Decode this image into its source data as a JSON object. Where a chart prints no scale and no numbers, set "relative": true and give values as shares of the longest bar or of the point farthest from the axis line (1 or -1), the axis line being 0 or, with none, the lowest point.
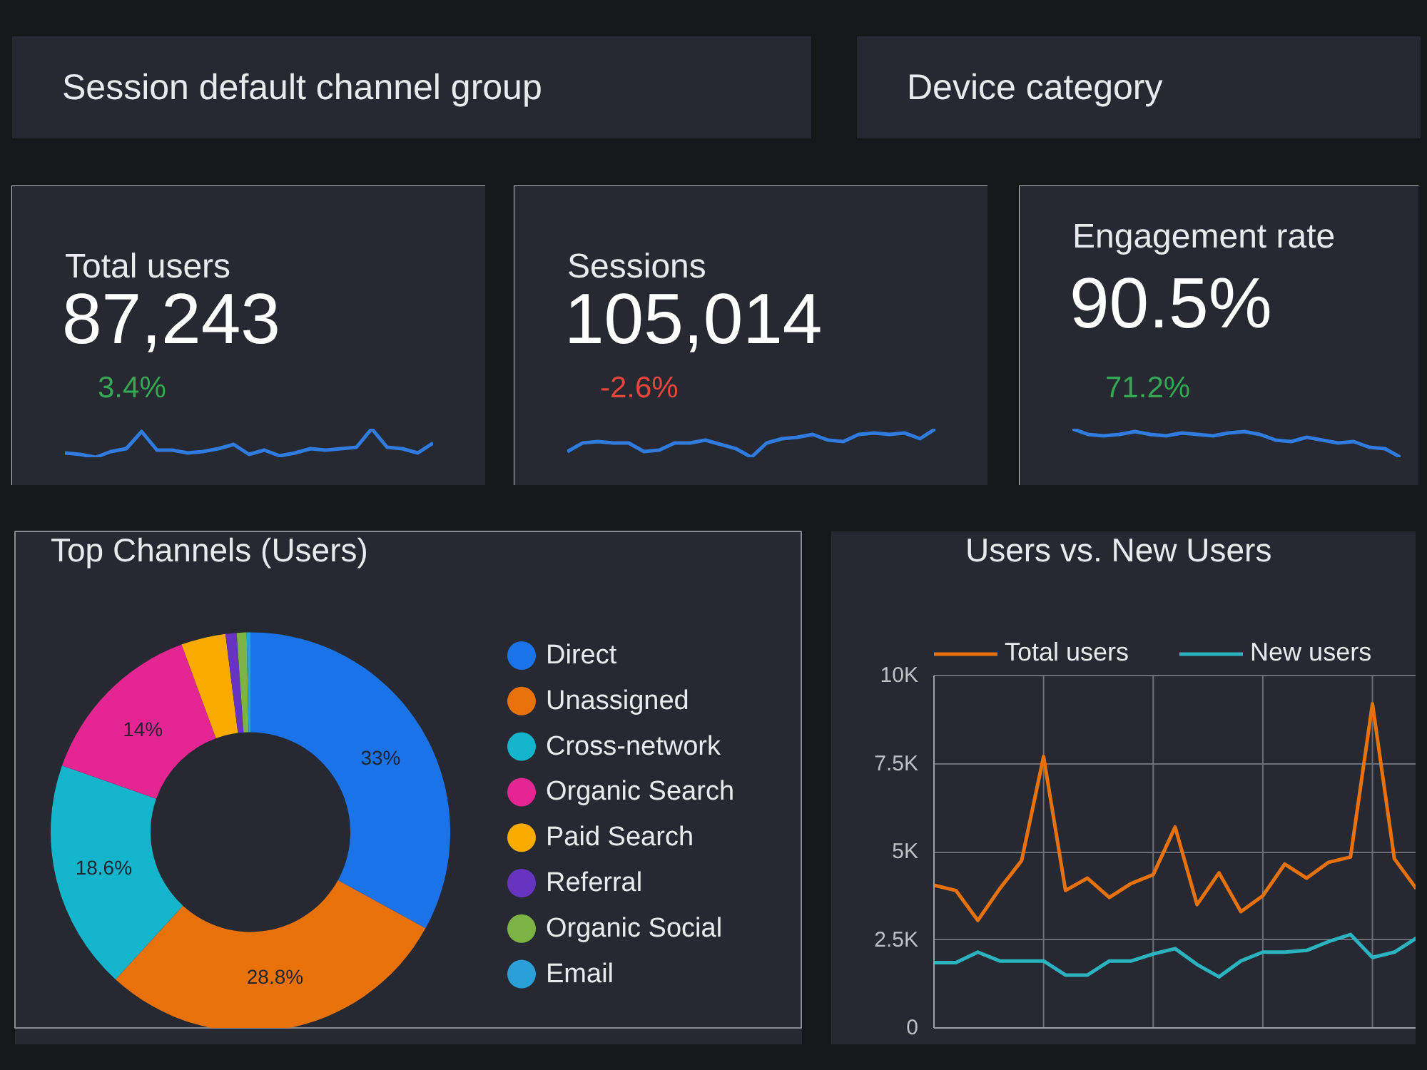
{
  "chart_data": [
    {
      "type": "other",
      "annotations": [
        "Session default channel group",
        "Device category"
      ]
    },
    {
      "type": "line",
      "relative": true,
      "title": "Total users",
      "annotations": [
        "87,243",
        "3.4%"
      ],
      "categories": [
        null,
        null,
        null,
        null,
        null,
        null,
        null,
        null,
        null,
        null,
        null,
        null,
        null,
        null,
        null,
        null,
        null,
        null,
        null,
        null,
        null,
        null,
        null,
        null,
        null
      ],
      "series": [
        {
          "color": "#2f7be0",
          "values": [
            0.15,
            0.1,
            0,
            0.2,
            0.3,
            0.9,
            0.25,
            0.25,
            0.15,
            0.2,
            0.3,
            0.45,
            0.1,
            0.25,
            0.05,
            0.15,
            0.3,
            0.25,
            0.3,
            0.35,
            1,
            0.35,
            0.3,
            0.15,
            0.5
          ]
        }
      ]
    },
    {
      "type": "line",
      "relative": true,
      "title": "Sessions",
      "annotations": [
        "105,014",
        "-2.6%"
      ],
      "categories": [
        null,
        null,
        null,
        null,
        null,
        null,
        null,
        null,
        null,
        null,
        null,
        null,
        null,
        null,
        null,
        null,
        null,
        null,
        null,
        null,
        null,
        null,
        null,
        null,
        null
      ],
      "series": [
        {
          "color": "#2f7be0",
          "values": [
            0.2,
            0.5,
            0.55,
            0.5,
            0.5,
            0.2,
            0.25,
            0.5,
            0.5,
            0.6,
            0.45,
            0.3,
            0,
            0.5,
            0.65,
            0.7,
            0.8,
            0.6,
            0.55,
            0.8,
            0.85,
            0.8,
            0.85,
            0.65,
            1
          ]
        }
      ]
    },
    {
      "type": "line",
      "relative": true,
      "title": "Engagement rate",
      "annotations": [
        "90.5%",
        "71.2%"
      ],
      "categories": [
        null,
        null,
        null,
        null,
        null,
        null,
        null,
        null,
        null,
        null,
        null,
        null,
        null,
        null,
        null,
        null,
        null,
        null,
        null,
        null,
        null,
        null
      ],
      "series": [
        {
          "color": "#2f7be0",
          "values": [
            1,
            0.8,
            0.75,
            0.8,
            0.9,
            0.8,
            0.75,
            0.85,
            0.8,
            0.75,
            0.85,
            0.9,
            0.8,
            0.6,
            0.55,
            0.7,
            0.6,
            0.5,
            0.55,
            0.35,
            0.3,
            0
          ]
        }
      ]
    },
    {
      "type": "donut",
      "title": "Top Channels (Users)",
      "legend": "right",
      "categories": [
        "Direct",
        "Unassigned",
        "Cross-network",
        "Organic Search",
        "Paid Search",
        "Referral",
        "Organic Social",
        "Email"
      ],
      "values": [
        33,
        28.8,
        18.6,
        14,
        3.6,
        0.9,
        0.8,
        0.3
      ],
      "colors": [
        "#1a73e8",
        "#e8710a",
        "#12b5cb",
        "#e52592",
        "#f9ab00",
        "#6734c1",
        "#7cb342",
        "#2a9fd8"
      ],
      "value_labels": [
        "33%",
        "28.8%",
        "18.6%",
        "14%",
        null,
        null,
        null,
        null
      ]
    },
    {
      "type": "line",
      "title": "Users vs. New Users",
      "legend": "top",
      "grid": true,
      "tick_labels": "y",
      "categories": [
        null,
        null,
        null,
        null,
        null,
        null,
        null,
        null,
        null,
        null,
        null,
        null,
        null,
        null,
        null,
        null,
        null,
        null,
        null,
        null,
        null,
        null,
        null
      ],
      "ylim": [
        0,
        10000
      ],
      "yticks": [
        {
          "value": 0,
          "label": "0"
        },
        {
          "value": 2500,
          "label": "2.5K"
        },
        {
          "value": 5000,
          "label": "5K"
        },
        {
          "value": 7500,
          "label": "7.5K"
        },
        {
          "value": 10000,
          "label": "10K"
        }
      ],
      "series": [
        {
          "name": "Total users",
          "color": "#e8710a",
          "values": [
            4050,
            3900,
            3050,
            3950,
            4750,
            7700,
            3900,
            4250,
            3700,
            4100,
            4350,
            5700,
            3500,
            4400,
            3300,
            3750,
            4650,
            4250,
            4700,
            4850,
            9200,
            4800,
            3950
          ]
        },
        {
          "name": "New users",
          "color": "#2bb3c0",
          "values": [
            1850,
            1850,
            2150,
            1900,
            1900,
            1900,
            1500,
            1500,
            1900,
            1900,
            2100,
            2250,
            1800,
            1450,
            1900,
            2150,
            2150,
            2200,
            2450,
            2650,
            2000,
            2150,
            2550
          ]
        }
      ]
    }
  ]
}
